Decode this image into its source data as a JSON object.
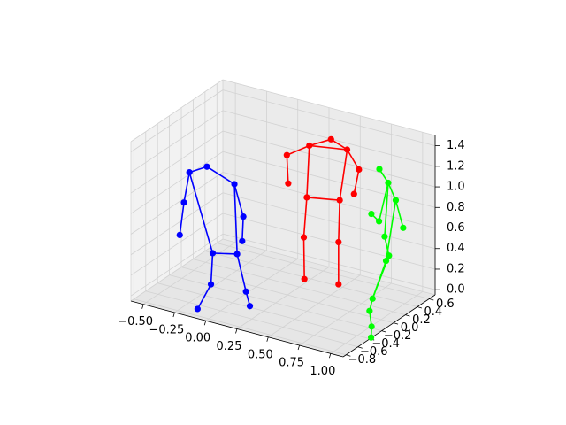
{
  "chart_data": {
    "type": "scatter",
    "subtype": "3d-skeleton",
    "title": "",
    "xlabel": "",
    "ylabel": "",
    "zlabel": "",
    "grid": true,
    "axes": {
      "x": {
        "ticks": [
          -0.5,
          -0.25,
          0.0,
          0.25,
          0.5,
          0.75,
          1.0
        ],
        "tick_labels": [
          "−0.50",
          "−0.25",
          "0.00",
          "0.25",
          "0.50",
          "0.75",
          "1.00"
        ],
        "lim": [
          -0.6,
          1.1
        ]
      },
      "y": {
        "ticks": [
          -0.8,
          -0.6,
          -0.4,
          -0.2,
          0.0,
          0.2,
          0.4,
          0.6
        ],
        "tick_labels": [
          "−0.8",
          "−0.6",
          "−0.4",
          "−0.2",
          "0.0",
          "0.2",
          "0.4",
          "0.6"
        ],
        "lim": [
          -0.85,
          0.7
        ]
      },
      "z": {
        "ticks": [
          0.0,
          0.2,
          0.4,
          0.6,
          0.8,
          1.0,
          1.2,
          1.4
        ],
        "tick_labels": [
          "0.0",
          "0.2",
          "0.4",
          "0.6",
          "0.8",
          "1.0",
          "1.2",
          "1.4"
        ],
        "lim": [
          -0.05,
          1.5
        ]
      }
    },
    "colors": {
      "figure_bg": "#ffffff",
      "pane_left": "#f2f2f2",
      "pane_back": "#ebebeb",
      "pane_floor": "#e6e6e6",
      "grid": "#d2d2d2"
    },
    "series": [
      {
        "color": "#0000ff",
        "points": [
          [
            -0.44,
            -0.2,
            1.0
          ],
          [
            -0.46,
            -0.25,
            0.72
          ],
          [
            -0.47,
            -0.3,
            0.42
          ],
          [
            -0.3,
            -0.2,
            1.1
          ],
          [
            -0.08,
            -0.2,
            1.0
          ],
          [
            0.02,
            -0.26,
            0.74
          ],
          [
            0.03,
            -0.3,
            0.52
          ],
          [
            -0.23,
            -0.25,
            0.3
          ],
          [
            -0.02,
            -0.28,
            0.37
          ],
          [
            -0.22,
            -0.3,
            0.02
          ],
          [
            0.07,
            -0.32,
            0.05
          ],
          [
            -0.28,
            -0.4,
            -0.2
          ],
          [
            0.12,
            -0.36,
            -0.06
          ]
        ],
        "edges": [
          [
            0,
            1
          ],
          [
            1,
            2
          ],
          [
            0,
            3
          ],
          [
            3,
            4
          ],
          [
            4,
            5
          ],
          [
            5,
            6
          ],
          [
            0,
            7
          ],
          [
            7,
            8
          ],
          [
            4,
            8
          ],
          [
            7,
            9
          ],
          [
            8,
            10
          ],
          [
            9,
            11
          ],
          [
            10,
            12
          ]
        ]
      },
      {
        "color": "#ff0000",
        "points": [
          [
            0.15,
            0.2,
            1.2
          ],
          [
            0.18,
            0.16,
            0.95
          ],
          [
            0.33,
            0.2,
            1.35
          ],
          [
            0.48,
            0.25,
            1.44
          ],
          [
            0.6,
            0.27,
            1.37
          ],
          [
            0.68,
            0.3,
            1.19
          ],
          [
            0.65,
            0.28,
            0.95
          ],
          [
            0.31,
            0.2,
            0.84
          ],
          [
            0.55,
            0.25,
            0.87
          ],
          [
            0.3,
            0.17,
            0.46
          ],
          [
            0.55,
            0.23,
            0.47
          ],
          [
            0.3,
            0.18,
            0.05
          ],
          [
            0.55,
            0.23,
            0.06
          ]
        ],
        "edges": [
          [
            0,
            1
          ],
          [
            0,
            2
          ],
          [
            2,
            3
          ],
          [
            3,
            4
          ],
          [
            2,
            4
          ],
          [
            4,
            5
          ],
          [
            5,
            6
          ],
          [
            2,
            7
          ],
          [
            7,
            8
          ],
          [
            4,
            8
          ],
          [
            7,
            9
          ],
          [
            8,
            10
          ],
          [
            9,
            11
          ],
          [
            10,
            12
          ]
        ]
      },
      {
        "color": "#00ff00",
        "points": [
          [
            0.82,
            0.35,
            1.22
          ],
          [
            0.9,
            0.33,
            1.12
          ],
          [
            0.97,
            0.31,
            0.98
          ],
          [
            0.77,
            0.32,
            0.78
          ],
          [
            0.86,
            0.26,
            0.76
          ],
          [
            1.02,
            0.33,
            0.72
          ],
          [
            0.9,
            0.27,
            0.62
          ],
          [
            0.93,
            0.28,
            0.44
          ],
          [
            0.94,
            0.21,
            0.42
          ],
          [
            0.86,
            0.15,
            0.05
          ],
          [
            0.86,
            0.1,
            -0.05
          ],
          [
            0.9,
            0.05,
            -0.17
          ],
          [
            0.92,
            0.0,
            -0.25
          ]
        ],
        "edges": [
          [
            0,
            1
          ],
          [
            1,
            2
          ],
          [
            2,
            5
          ],
          [
            1,
            4
          ],
          [
            4,
            3
          ],
          [
            1,
            6
          ],
          [
            6,
            7
          ],
          [
            2,
            8
          ],
          [
            8,
            9
          ],
          [
            7,
            9
          ],
          [
            9,
            10
          ],
          [
            10,
            11
          ],
          [
            11,
            12
          ]
        ]
      }
    ]
  }
}
